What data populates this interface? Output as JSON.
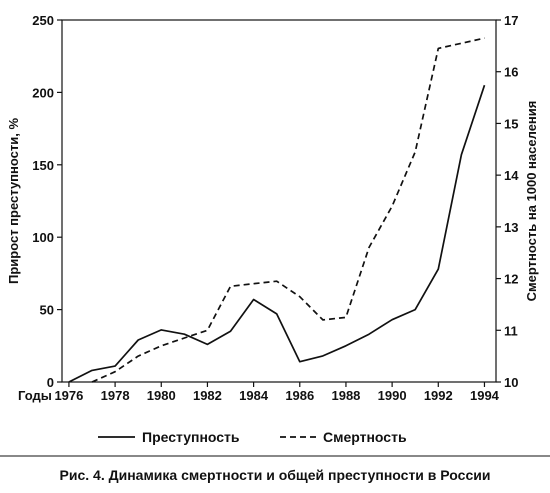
{
  "chart_data": {
    "type": "line",
    "caption": "Рис. 4. Динамика смертности и общей преступности в России",
    "x_axis_label": "Годы",
    "x_ticks": [
      "1976",
      "1978",
      "1980",
      "1982",
      "1984",
      "1986",
      "1988",
      "1990",
      "1992",
      "1994"
    ],
    "xlim": [
      1975.7,
      1994.5
    ],
    "left_axis": {
      "label": "Прирост преступности, %",
      "ticks": [
        "0",
        "50",
        "100",
        "150",
        "200",
        "250"
      ],
      "ylim": [
        0,
        250
      ]
    },
    "right_axis": {
      "label": "Смертность на 1000 населения",
      "ticks": [
        "10",
        "11",
        "12",
        "13",
        "14",
        "15",
        "16",
        "17"
      ],
      "ylim": [
        10,
        17
      ]
    },
    "series": [
      {
        "name": "Преступность",
        "axis": "left",
        "style": "solid",
        "x": [
          1976,
          1977,
          1978,
          1979,
          1980,
          1981,
          1982,
          1983,
          1984,
          1985,
          1986,
          1987,
          1988,
          1989,
          1990,
          1991,
          1992,
          1993,
          1994
        ],
        "values": [
          0,
          8,
          11,
          29,
          36,
          33,
          26,
          35,
          57,
          47,
          14,
          18,
          25,
          33,
          43,
          50,
          78,
          157,
          205
        ]
      },
      {
        "name": "Смертность",
        "axis": "right",
        "style": "dashed",
        "x": [
          1977,
          1978,
          1979,
          1980,
          1981,
          1982,
          1983,
          1984,
          1985,
          1986,
          1987,
          1988,
          1989,
          1990,
          1991,
          1992,
          1993,
          1994
        ],
        "values": [
          10.0,
          10.2,
          10.5,
          10.7,
          10.85,
          11.0,
          11.85,
          11.9,
          11.95,
          11.65,
          11.2,
          11.25,
          12.6,
          13.4,
          14.45,
          16.45,
          16.55,
          16.65
        ]
      }
    ]
  }
}
